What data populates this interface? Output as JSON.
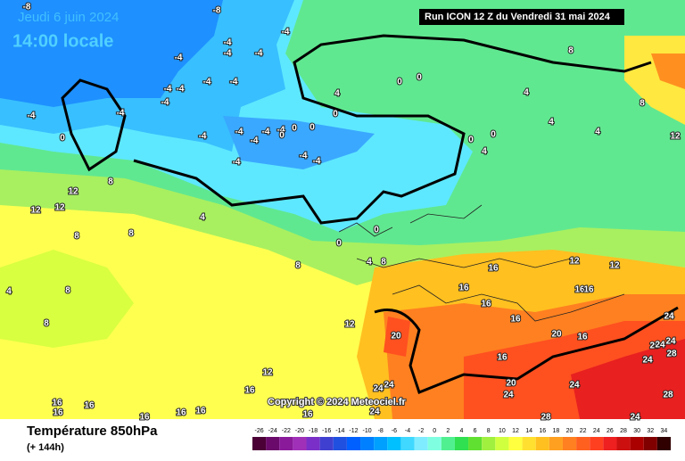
{
  "header": {
    "date": "Jeudi 6 juin 2024",
    "time": "14:00 locale",
    "run": "Run ICON 12 Z du Vendredi 31 mai 2024"
  },
  "copyright": "Copyright © 2024 Meteociel.fr",
  "legend": {
    "title": "Température 850hPa",
    "lead": "(+ 144h)",
    "ticks": [
      -26,
      -24,
      -22,
      -20,
      -18,
      -16,
      -14,
      -12,
      -10,
      -8,
      -6,
      -4,
      -2,
      0,
      2,
      4,
      6,
      8,
      10,
      12,
      14,
      16,
      18,
      20,
      22,
      24,
      26,
      28,
      30,
      32,
      34
    ],
    "colors": [
      "#4b0036",
      "#6a0a6a",
      "#8a1a9a",
      "#a030b8",
      "#7a30c8",
      "#4040d0",
      "#2050e0",
      "#0060ff",
      "#0080ff",
      "#00a0ff",
      "#00c0ff",
      "#40d8ff",
      "#80ecff",
      "#80ffe0",
      "#50f090",
      "#30e050",
      "#60e030",
      "#a0f040",
      "#d0ff40",
      "#ffff40",
      "#ffe030",
      "#ffc020",
      "#ffa020",
      "#ff8020",
      "#ff6020",
      "#ff4020",
      "#ee2020",
      "#cc1010",
      "#aa0000",
      "#800000",
      "#300000"
    ]
  },
  "map_labels": [
    -8,
    -8,
    -4,
    -4,
    -4,
    -4,
    -4,
    -4,
    -4,
    -4,
    -4,
    -4,
    -4,
    -4,
    -4,
    -4,
    -4,
    -4,
    -4,
    -4,
    -4,
    -4,
    0,
    0,
    0,
    0,
    0,
    0,
    0,
    0,
    0,
    0,
    0,
    4,
    4,
    4,
    4,
    4,
    4,
    4,
    4,
    8,
    8,
    8,
    8,
    8,
    8,
    8,
    8,
    8,
    12,
    12,
    12,
    12,
    12,
    12,
    12,
    12,
    16,
    16,
    16,
    16,
    16,
    16,
    16,
    16,
    16,
    16,
    16,
    16,
    16,
    16,
    16,
    16,
    20,
    20,
    20,
    20,
    24,
    24,
    24,
    24,
    24,
    24,
    24,
    24,
    24,
    28,
    28,
    28,
    24
  ]
}
